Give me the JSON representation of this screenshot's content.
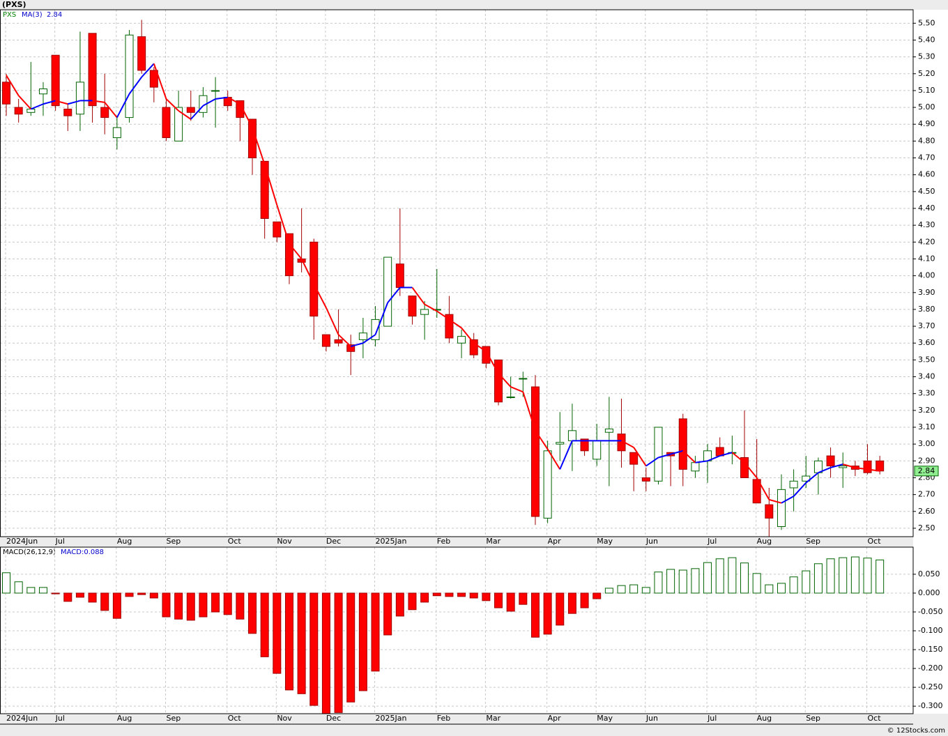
{
  "chart_data": [
    {
      "type": "candlestick",
      "title": "(PXS)",
      "symbol": "PXS",
      "ma_name": "MA(3)",
      "categories": [
        "2024Jun",
        null,
        null,
        null,
        "Jul",
        null,
        null,
        null,
        null,
        "Aug",
        null,
        null,
        null,
        "Sep",
        null,
        null,
        null,
        null,
        "Oct",
        null,
        null,
        null,
        "Nov",
        null,
        null,
        null,
        "Dec",
        null,
        null,
        null,
        "2025Jan",
        null,
        null,
        null,
        null,
        "Feb",
        null,
        null,
        null,
        "Mar",
        null,
        null,
        null,
        null,
        "Apr",
        null,
        null,
        null,
        "May",
        null,
        null,
        null,
        "Jun",
        null,
        null,
        null,
        null,
        "Jul",
        null,
        null,
        null,
        "Aug",
        null,
        null,
        null,
        "Sep",
        null,
        null,
        null,
        null,
        "Oct",
        null
      ],
      "open": [
        5.15,
        5.0,
        4.97,
        5.08,
        5.31,
        4.99,
        4.96,
        5.44,
        5.0,
        4.82,
        4.94,
        5.42,
        5.22,
        5.0,
        4.8,
        5.0,
        4.97,
        5.1,
        5.06,
        5.04,
        4.93,
        4.68,
        4.32,
        4.25,
        4.1,
        4.2,
        3.65,
        3.62,
        3.59,
        3.62,
        3.62,
        3.7,
        4.07,
        3.88,
        3.77,
        3.8,
        3.77,
        3.6,
        3.62,
        3.58,
        3.5,
        3.28,
        3.39,
        3.34,
        2.56,
        3.0,
        3.02,
        3.03,
        2.91,
        3.07,
        3.06,
        2.95,
        2.8,
        2.78,
        2.95,
        3.15,
        2.84,
        2.9,
        2.98,
        2.95,
        2.92,
        2.79,
        2.64,
        2.51,
        2.74,
        2.78,
        2.83,
        2.93,
        2.86,
        2.87,
        2.9,
        2.9
      ],
      "high": [
        5.2,
        5.05,
        5.27,
        5.15,
        5.31,
        5.02,
        5.45,
        5.44,
        5.2,
        4.95,
        5.46,
        5.52,
        5.24,
        5.05,
        5.1,
        5.1,
        5.12,
        5.18,
        5.1,
        5.04,
        4.93,
        4.68,
        4.32,
        4.25,
        4.4,
        4.22,
        3.65,
        3.8,
        3.65,
        3.75,
        3.82,
        4.11,
        4.4,
        3.88,
        3.85,
        4.04,
        3.88,
        3.68,
        3.66,
        3.58,
        3.5,
        3.4,
        3.43,
        3.41,
        3.02,
        3.19,
        3.24,
        3.03,
        3.12,
        3.28,
        3.27,
        2.95,
        2.86,
        3.1,
        2.95,
        3.18,
        2.93,
        3.0,
        3.04,
        3.05,
        3.2,
        3.03,
        2.74,
        2.82,
        2.85,
        2.93,
        2.92,
        2.98,
        2.95,
        2.9,
        3.0,
        2.93
      ],
      "low": [
        4.95,
        4.91,
        4.95,
        4.95,
        4.98,
        4.86,
        4.86,
        4.91,
        4.84,
        4.75,
        4.91,
        5.2,
        5.03,
        4.8,
        4.8,
        4.92,
        4.94,
        4.88,
        4.98,
        4.8,
        4.6,
        4.22,
        4.2,
        3.95,
        4.02,
        3.62,
        3.55,
        3.58,
        3.41,
        3.51,
        3.58,
        3.7,
        3.88,
        3.71,
        3.62,
        3.75,
        3.6,
        3.51,
        3.51,
        3.45,
        3.23,
        3.27,
        3.28,
        2.52,
        2.53,
        2.9,
        2.84,
        2.93,
        2.87,
        2.75,
        2.86,
        2.72,
        2.72,
        2.76,
        2.75,
        2.75,
        2.8,
        2.77,
        2.93,
        2.88,
        2.8,
        2.65,
        2.45,
        2.49,
        2.6,
        2.74,
        2.7,
        2.8,
        2.74,
        2.81,
        2.82,
        2.82
      ],
      "close": [
        5.02,
        4.96,
        4.99,
        5.11,
        5.01,
        4.95,
        5.15,
        5.01,
        4.94,
        4.88,
        5.43,
        5.22,
        5.12,
        4.82,
        5.0,
        4.97,
        5.07,
        5.1,
        5.01,
        4.94,
        4.7,
        4.34,
        4.23,
        4.0,
        4.08,
        3.76,
        3.58,
        3.6,
        3.55,
        3.66,
        3.74,
        4.11,
        3.93,
        3.76,
        3.8,
        3.8,
        3.63,
        3.64,
        3.53,
        3.48,
        3.25,
        3.28,
        3.39,
        2.57,
        2.96,
        3.01,
        3.08,
        2.96,
        3.02,
        3.09,
        2.96,
        2.88,
        2.78,
        3.1,
        2.93,
        2.85,
        2.89,
        2.96,
        2.93,
        2.95,
        2.8,
        2.65,
        2.56,
        2.73,
        2.78,
        2.81,
        2.9,
        2.87,
        2.87,
        2.85,
        2.83,
        2.84
      ],
      "ma": [
        5.19,
        5.07,
        4.99,
        5.02,
        5.04,
        5.02,
        5.04,
        5.04,
        5.03,
        4.94,
        5.08,
        5.18,
        5.26,
        5.05,
        4.98,
        4.93,
        5.01,
        5.05,
        5.06,
        5.02,
        4.88,
        4.66,
        4.42,
        4.19,
        4.1,
        3.95,
        3.81,
        3.65,
        3.58,
        3.6,
        3.65,
        3.84,
        3.93,
        3.93,
        3.83,
        3.79,
        3.74,
        3.69,
        3.6,
        3.55,
        3.42,
        3.34,
        3.31,
        3.08,
        2.97,
        2.85,
        3.02,
        3.02,
        3.02,
        3.02,
        3.02,
        2.98,
        2.87,
        2.92,
        2.94,
        2.96,
        2.89,
        2.9,
        2.93,
        2.95,
        2.89,
        2.8,
        2.67,
        2.65,
        2.69,
        2.77,
        2.83,
        2.86,
        2.88,
        2.86,
        2.85,
        2.84
      ],
      "up_color": "#ffffff",
      "up_edge": "#006400",
      "down_color": "#ff0000",
      "down_edge": "#a00000",
      "ma_up_color": "#0000ff",
      "ma_down_color": "#ff0000",
      "tag_color": "#90ee90",
      "ylim": [
        2.45,
        5.58
      ],
      "yticks": [
        {
          "value": 2.5,
          "label": "2.50"
        },
        {
          "value": 2.6,
          "label": "2.60"
        },
        {
          "value": 2.7,
          "label": "2.70"
        },
        {
          "value": 2.8,
          "label": "2.80"
        },
        {
          "value": 2.9,
          "label": "2.90"
        },
        {
          "value": 3.0,
          "label": "3.00"
        },
        {
          "value": 3.1,
          "label": "3.10"
        },
        {
          "value": 3.2,
          "label": "3.20"
        },
        {
          "value": 3.3,
          "label": "3.30"
        },
        {
          "value": 3.4,
          "label": "3.40"
        },
        {
          "value": 3.5,
          "label": "3.50"
        },
        {
          "value": 3.6,
          "label": "3.60"
        },
        {
          "value": 3.7,
          "label": "3.70"
        },
        {
          "value": 3.8,
          "label": "3.80"
        },
        {
          "value": 3.9,
          "label": "3.90"
        },
        {
          "value": 4.0,
          "label": "4.00"
        },
        {
          "value": 4.1,
          "label": "4.10"
        },
        {
          "value": 4.2,
          "label": "4.20"
        },
        {
          "value": 4.3,
          "label": "4.30"
        },
        {
          "value": 4.4,
          "label": "4.40"
        },
        {
          "value": 4.5,
          "label": "4.50"
        },
        {
          "value": 4.6,
          "label": "4.60"
        },
        {
          "value": 4.7,
          "label": "4.70"
        },
        {
          "value": 4.8,
          "label": "4.80"
        },
        {
          "value": 4.9,
          "label": "4.90"
        },
        {
          "value": 5.0,
          "label": "5.00"
        },
        {
          "value": 5.1,
          "label": "5.10"
        },
        {
          "value": 5.2,
          "label": "5.20"
        },
        {
          "value": 5.3,
          "label": "5.30"
        },
        {
          "value": 5.4,
          "label": "5.40"
        },
        {
          "value": 5.5,
          "label": "5.50"
        }
      ],
      "grid": true
    },
    {
      "type": "bar",
      "title": "MACD(26,12,9)",
      "legend_label": "MACD:0.088",
      "values": [
        0.054,
        0.03,
        0.015,
        0.015,
        -0.002,
        -0.022,
        -0.011,
        -0.024,
        -0.046,
        -0.067,
        -0.009,
        -0.004,
        -0.013,
        -0.063,
        -0.069,
        -0.072,
        -0.063,
        -0.05,
        -0.057,
        -0.069,
        -0.107,
        -0.169,
        -0.213,
        -0.257,
        -0.267,
        -0.298,
        -0.32,
        -0.317,
        -0.289,
        -0.259,
        -0.207,
        -0.111,
        -0.061,
        -0.044,
        -0.024,
        -0.007,
        -0.009,
        -0.009,
        -0.013,
        -0.02,
        -0.039,
        -0.048,
        -0.03,
        -0.117,
        -0.109,
        -0.085,
        -0.054,
        -0.039,
        -0.015,
        0.013,
        0.02,
        0.022,
        0.015,
        0.056,
        0.063,
        0.061,
        0.065,
        0.081,
        0.091,
        0.094,
        0.08,
        0.052,
        0.022,
        0.026,
        0.043,
        0.059,
        0.078,
        0.091,
        0.094,
        0.096,
        0.093,
        0.088
      ],
      "pos_color": "#ffffff",
      "pos_edge": "#006400",
      "neg_color": "#ff0000",
      "neg_edge": "#a00000",
      "ylim": [
        -0.32,
        0.122
      ],
      "yticks": [
        {
          "value": 0.05,
          "label": "0.050"
        },
        {
          "value": 0,
          "label": "0.000"
        },
        {
          "value": -0.05,
          "label": "-0.050"
        },
        {
          "value": -0.1,
          "label": "-0.100"
        },
        {
          "value": -0.15,
          "label": "-0.150"
        },
        {
          "value": -0.2,
          "label": "-0.200"
        },
        {
          "value": -0.25,
          "label": "-0.250"
        },
        {
          "value": -0.3,
          "label": "-0.300"
        }
      ],
      "grid": true
    }
  ],
  "footer": "© 12Stocks.com"
}
